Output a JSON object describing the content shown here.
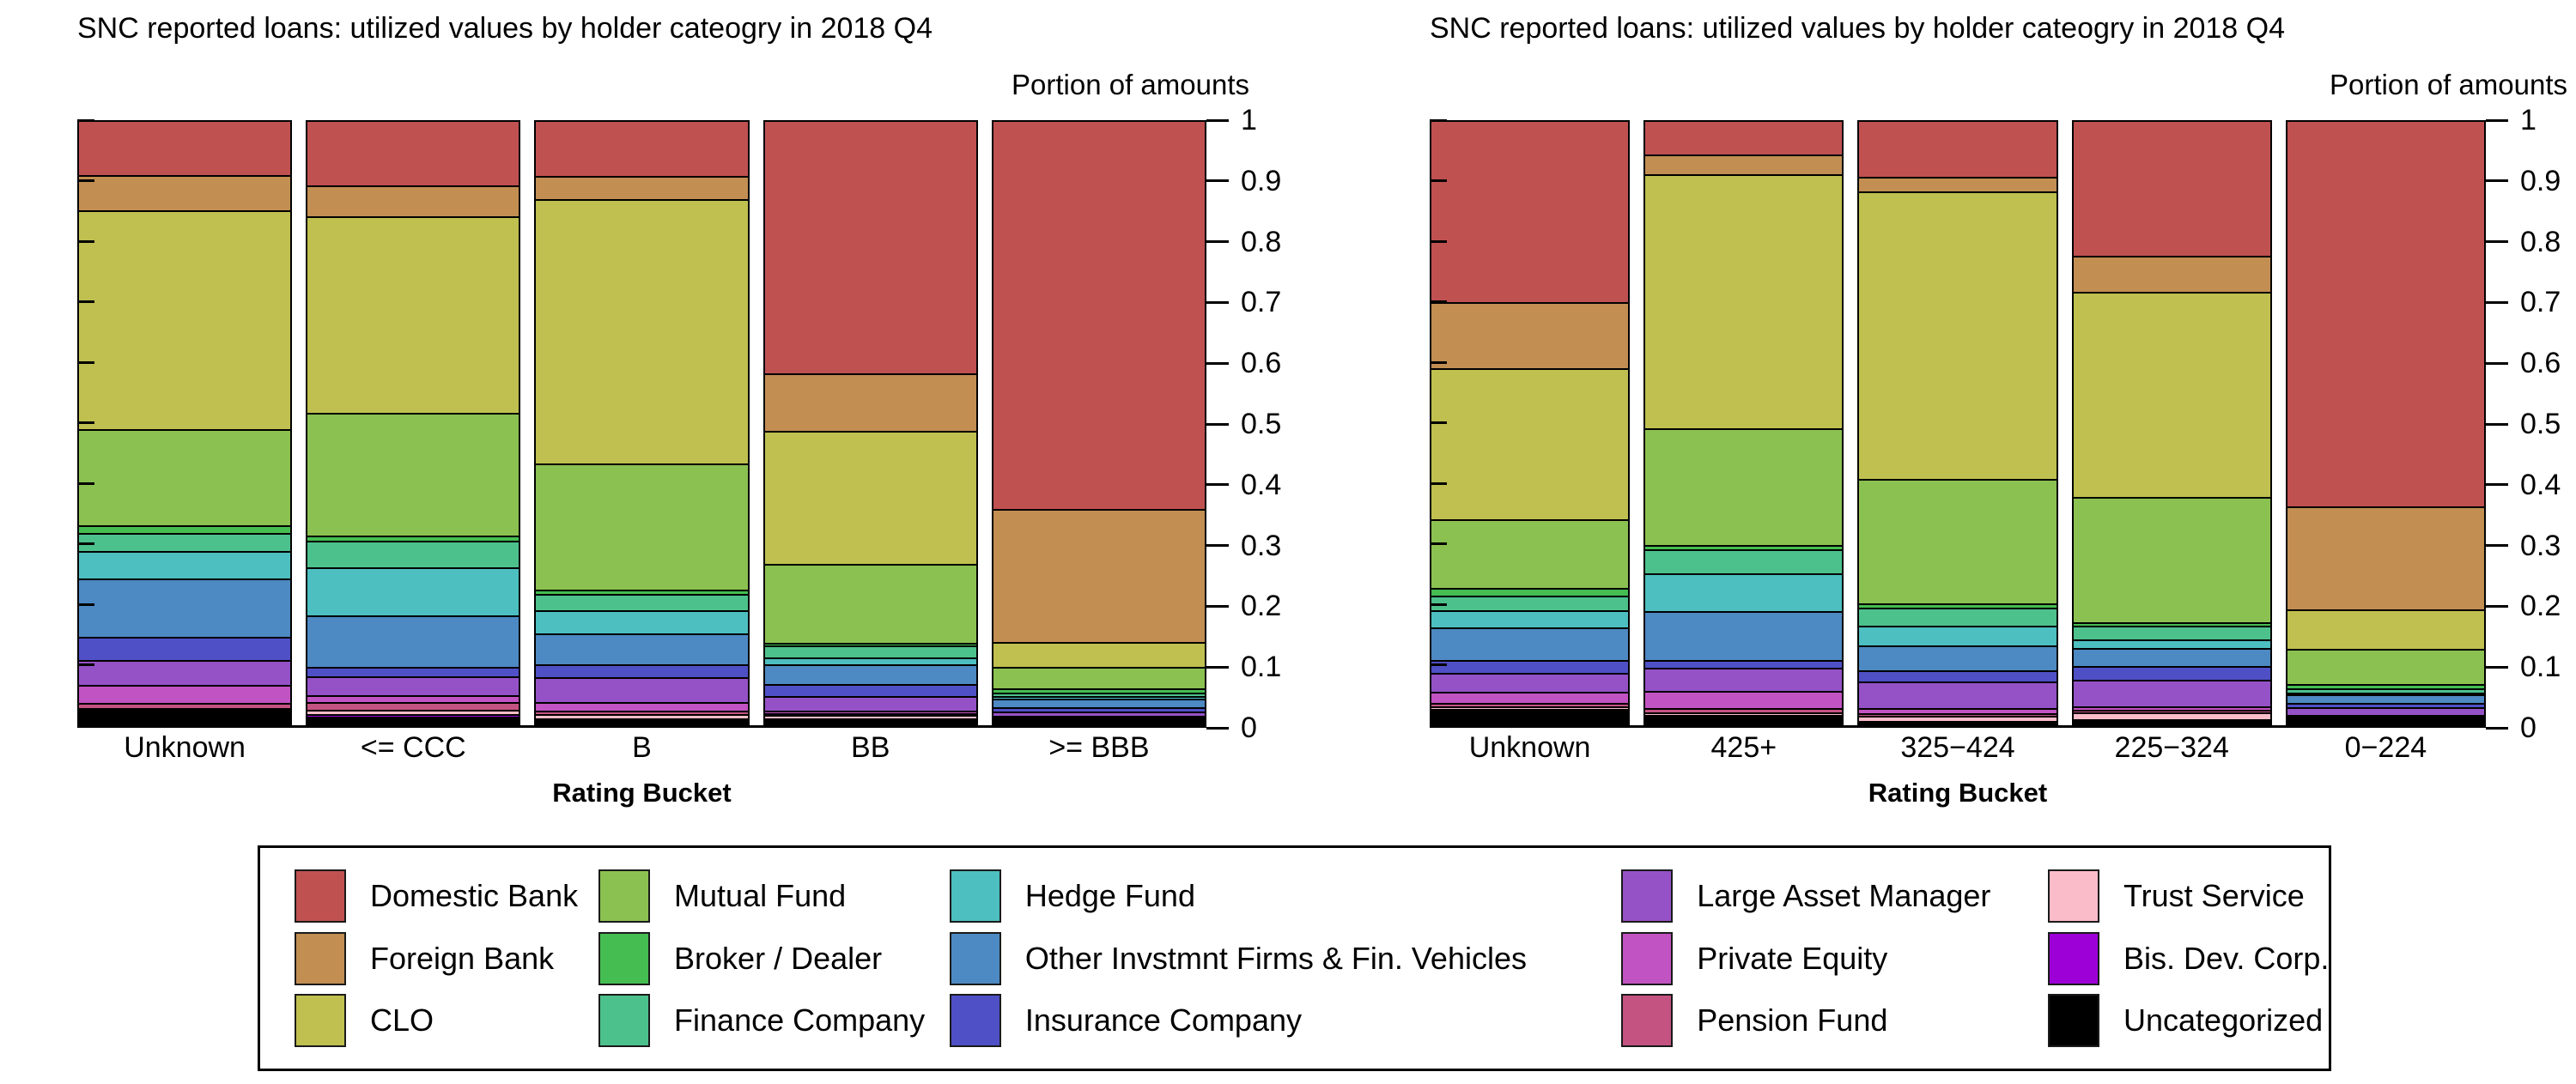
{
  "page": {
    "background": "#ffffff"
  },
  "yticks": [
    "1",
    "0.9",
    "0.8",
    "0.7",
    "0.6",
    "0.5",
    "0.4",
    "0.3",
    "0.2",
    "0.1",
    "0"
  ],
  "chart_data": [
    {
      "type": "bar",
      "stacked": true,
      "title": "SNC reported loans: utilized values by holder cateogry in 2018 Q4",
      "y_axis_title": "Portion of amounts",
      "x_axis_title": "Rating Bucket",
      "ylim": [
        0,
        1
      ],
      "grid": false,
      "categories": [
        "Unknown",
        "<= CCC",
        "B",
        "BB",
        ">= BBB"
      ],
      "series": [
        {
          "name": "Domestic Bank",
          "color": "#c05151",
          "values": [
            0.088,
            0.105,
            0.09,
            0.418,
            0.644
          ]
        },
        {
          "name": "Foreign Bank",
          "color": "#c28e52",
          "values": [
            0.059,
            0.052,
            0.038,
            0.095,
            0.22
          ]
        },
        {
          "name": "CLO",
          "color": "#bfc04f",
          "values": [
            0.364,
            0.326,
            0.44,
            0.221,
            0.042
          ]
        },
        {
          "name": "Mutual Fund",
          "color": "#8bc151",
          "values": [
            0.16,
            0.205,
            0.209,
            0.132,
            0.036
          ]
        },
        {
          "name": "Broker / Dealer",
          "color": "#45bd51",
          "values": [
            0.013,
            0.008,
            0.007,
            0.004,
            0.006
          ]
        },
        {
          "name": "Finance Company",
          "color": "#4dc18c",
          "values": [
            0.03,
            0.045,
            0.028,
            0.02,
            0.007
          ]
        },
        {
          "name": "Hedge Fund",
          "color": "#4dbfc0",
          "values": [
            0.045,
            0.079,
            0.038,
            0.012,
            0.004
          ]
        },
        {
          "name": "Other Invstmnt Firms & Fin. Vehicles",
          "color": "#4d89c2",
          "values": [
            0.097,
            0.086,
            0.052,
            0.033,
            0.014
          ]
        },
        {
          "name": "Insurance Company",
          "color": "#4f50c5",
          "values": [
            0.038,
            0.015,
            0.021,
            0.02,
            0.007
          ]
        },
        {
          "name": "Large Asset Manager",
          "color": "#9552c6",
          "values": [
            0.042,
            0.032,
            0.041,
            0.024,
            0.007
          ]
        },
        {
          "name": "Private Equity",
          "color": "#c253c2",
          "values": [
            0.03,
            0.012,
            0.014,
            0.004,
            0.002
          ]
        },
        {
          "name": "Pension Fund",
          "color": "#c45382",
          "values": [
            0.008,
            0.012,
            0.007,
            0.002,
            0.002
          ]
        },
        {
          "name": "Trust Service",
          "color": "#f9bcc8",
          "values": [
            0.004,
            0.008,
            0.006,
            0.006,
            0.002
          ]
        },
        {
          "name": "Bis. Dev. Corp.",
          "color": "#9c00d6",
          "values": [
            0.002,
            0.004,
            0.002,
            0.001,
            0.001
          ]
        },
        {
          "name": "Uncategorized",
          "color": "#000000",
          "values": [
            0.02,
            0.011,
            0.007,
            0.008,
            0.006
          ]
        }
      ]
    },
    {
      "type": "bar",
      "stacked": true,
      "title": "SNC reported loans: utilized values by holder cateogry in 2018 Q4",
      "y_axis_title": "Portion of amounts",
      "x_axis_title": "Rating Bucket",
      "ylim": [
        0,
        1
      ],
      "grid": false,
      "categories": [
        "Unknown",
        "425+",
        "325−424",
        "225−324",
        "0−224"
      ],
      "series": [
        {
          "name": "Domestic Bank",
          "color": "#c05151",
          "values": [
            0.3,
            0.054,
            0.092,
            0.222,
            0.639
          ]
        },
        {
          "name": "Foreign Bank",
          "color": "#c28e52",
          "values": [
            0.11,
            0.033,
            0.024,
            0.061,
            0.171
          ]
        },
        {
          "name": "CLO",
          "color": "#bfc04f",
          "values": [
            0.25,
            0.422,
            0.477,
            0.341,
            0.066
          ]
        },
        {
          "name": "Mutual Fund",
          "color": "#8bc151",
          "values": [
            0.115,
            0.194,
            0.207,
            0.208,
            0.058
          ]
        },
        {
          "name": "Broker / Dealer",
          "color": "#45bd51",
          "values": [
            0.012,
            0.008,
            0.008,
            0.006,
            0.008
          ]
        },
        {
          "name": "Finance Company",
          "color": "#4dc18c",
          "values": [
            0.025,
            0.04,
            0.03,
            0.022,
            0.007
          ]
        },
        {
          "name": "Hedge Fund",
          "color": "#4dbfc0",
          "values": [
            0.028,
            0.062,
            0.032,
            0.014,
            0.003
          ]
        },
        {
          "name": "Other Invstmnt Firms & Fin. Vehicles",
          "color": "#4d89c2",
          "values": [
            0.055,
            0.081,
            0.042,
            0.031,
            0.014
          ]
        },
        {
          "name": "Insurance Company",
          "color": "#4f50c5",
          "values": [
            0.021,
            0.014,
            0.018,
            0.023,
            0.007
          ]
        },
        {
          "name": "Large Asset Manager",
          "color": "#9552c6",
          "values": [
            0.031,
            0.038,
            0.045,
            0.043,
            0.013
          ]
        },
        {
          "name": "Private Equity",
          "color": "#c253c2",
          "values": [
            0.019,
            0.028,
            0.008,
            0.006,
            0.003
          ]
        },
        {
          "name": "Pension Fund",
          "color": "#c45382",
          "values": [
            0.006,
            0.008,
            0.005,
            0.004,
            0.002
          ]
        },
        {
          "name": "Trust Service",
          "color": "#f9bcc8",
          "values": [
            0.004,
            0.004,
            0.008,
            0.012,
            0.003
          ]
        },
        {
          "name": "Bis. Dev. Corp.",
          "color": "#9c00d6",
          "values": [
            0.002,
            0.002,
            0.002,
            0.002,
            0.001
          ]
        },
        {
          "name": "Uncategorized",
          "color": "#000000",
          "values": [
            0.022,
            0.012,
            0.002,
            0.005,
            0.005
          ]
        }
      ]
    }
  ],
  "legend": {
    "columns": 5,
    "rows": 3
  }
}
